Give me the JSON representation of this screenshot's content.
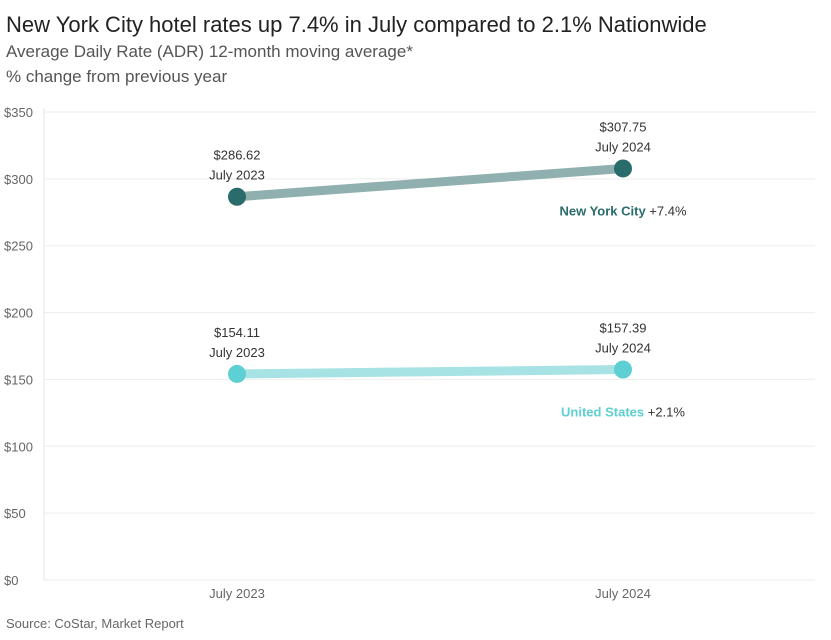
{
  "title": "New York City hotel rates up 7.4% in July compared to 2.1% Nationwide",
  "subtitle": "Average Daily Rate (ADR) 12-month moving average*",
  "subtitle2": "% change from previous year",
  "source": "Source: CoStar, Market Report",
  "chart_data": {
    "type": "line",
    "categories": [
      "July 2023",
      "July 2024"
    ],
    "ylim": [
      0,
      350
    ],
    "yticks": [
      "$350",
      "$300",
      "$250",
      "$200",
      "$150",
      "$100",
      "$50",
      "$0"
    ],
    "ytick_values": [
      350,
      300,
      250,
      200,
      150,
      100,
      50,
      0
    ],
    "grid": true,
    "series": [
      {
        "name": "New York City",
        "change": "+7.4%",
        "values": [
          286.62,
          307.75
        ],
        "value_labels": [
          "$286.62",
          "$307.75"
        ],
        "color": "#2a6b6b",
        "line_color": "#8fb0ae"
      },
      {
        "name": "United States",
        "change": "+2.1%",
        "values": [
          154.11,
          157.39
        ],
        "value_labels": [
          "$154.11",
          "$157.39"
        ],
        "color": "#5ecfd3",
        "line_color": "#a7e2e4"
      }
    ]
  }
}
